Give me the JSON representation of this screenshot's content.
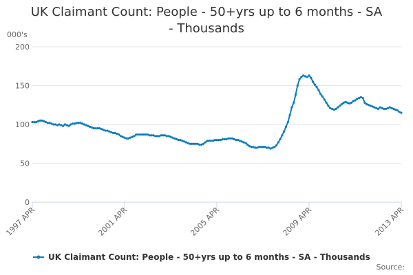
{
  "chart_data": {
    "type": "line",
    "title": "UK Claimant Count: People - 50+yrs up to 6 months - SA - Thousands",
    "y_unit": "000's",
    "source": "Source:",
    "categories": [
      "1997 APR",
      null,
      null,
      null,
      null,
      null,
      null,
      null,
      null,
      null,
      null,
      null,
      null,
      null,
      null,
      null,
      null,
      null,
      null,
      null,
      null,
      null,
      null,
      null,
      null,
      null,
      null,
      null,
      null,
      null,
      null,
      null,
      null,
      null,
      null,
      null,
      null,
      null,
      null,
      null,
      null,
      null,
      null,
      null,
      null,
      null,
      null,
      null,
      "2001 APR",
      null,
      null,
      null,
      null,
      null,
      null,
      null,
      null,
      null,
      null,
      null,
      null,
      null,
      null,
      null,
      null,
      null,
      null,
      null,
      null,
      null,
      null,
      null,
      null,
      null,
      null,
      null,
      null,
      null,
      null,
      null,
      null,
      null,
      null,
      null,
      null,
      null,
      null,
      null,
      null,
      null,
      null,
      null,
      null,
      null,
      null,
      null,
      "2005 APR",
      null,
      null,
      null,
      null,
      null,
      null,
      null,
      null,
      null,
      null,
      null,
      null,
      null,
      null,
      null,
      null,
      null,
      null,
      null,
      null,
      null,
      null,
      null,
      null,
      null,
      null,
      null,
      null,
      null,
      null,
      null,
      null,
      null,
      null,
      null,
      null,
      null,
      null,
      null,
      null,
      null,
      null,
      null,
      null,
      null,
      null,
      null,
      "2009 APR",
      null,
      null,
      null,
      null,
      null,
      null,
      null,
      null,
      null,
      null,
      null,
      null,
      null,
      null,
      null,
      null,
      null,
      null,
      null,
      null,
      null,
      null,
      null,
      null,
      null,
      null,
      null,
      null,
      null,
      null,
      null,
      null,
      null,
      null,
      null,
      null,
      null,
      null,
      null,
      null,
      null,
      null,
      null,
      null,
      null,
      null,
      null,
      "2013 APR"
    ],
    "series": [
      {
        "name": "UK Claimant Count: People - 50+yrs up to 6 months - SA - Thousands",
        "color": "#0b7dbf",
        "values": [
          103,
          103,
          103,
          104,
          105,
          105,
          104,
          103,
          102,
          102,
          101,
          100,
          100,
          99,
          100,
          99,
          98,
          100,
          99,
          98,
          100,
          101,
          101,
          102,
          102,
          102,
          101,
          100,
          99,
          98,
          97,
          96,
          95,
          95,
          95,
          95,
          94,
          93,
          92,
          92,
          91,
          90,
          89,
          89,
          88,
          87,
          85,
          84,
          83,
          82,
          82,
          83,
          84,
          85,
          87,
          87,
          87,
          87,
          87,
          87,
          87,
          86,
          86,
          86,
          85,
          85,
          85,
          86,
          86,
          86,
          85,
          85,
          84,
          83,
          82,
          81,
          80,
          80,
          79,
          78,
          77,
          76,
          75,
          75,
          75,
          75,
          75,
          74,
          74,
          75,
          77,
          79,
          79,
          79,
          79,
          80,
          80,
          80,
          80,
          81,
          81,
          81,
          82,
          82,
          82,
          81,
          80,
          80,
          79,
          78,
          77,
          76,
          74,
          72,
          71,
          71,
          70,
          70,
          71,
          71,
          71,
          71,
          70,
          70,
          69,
          70,
          71,
          73,
          77,
          81,
          86,
          91,
          97,
          103,
          112,
          122,
          128,
          138,
          150,
          158,
          161,
          163,
          162,
          161,
          163,
          160,
          155,
          151,
          148,
          144,
          139,
          136,
          132,
          128,
          124,
          121,
          120,
          119,
          120,
          122,
          124,
          126,
          128,
          129,
          128,
          127,
          128,
          130,
          131,
          133,
          134,
          135,
          134,
          128,
          126,
          125,
          124,
          123,
          122,
          121,
          120,
          122,
          121,
          120,
          120,
          121,
          122,
          121,
          120,
          119,
          118,
          116,
          115
        ]
      }
    ],
    "ylim": [
      0,
      200
    ],
    "yticks": [
      0,
      50,
      100,
      150,
      200
    ],
    "grid": true
  }
}
